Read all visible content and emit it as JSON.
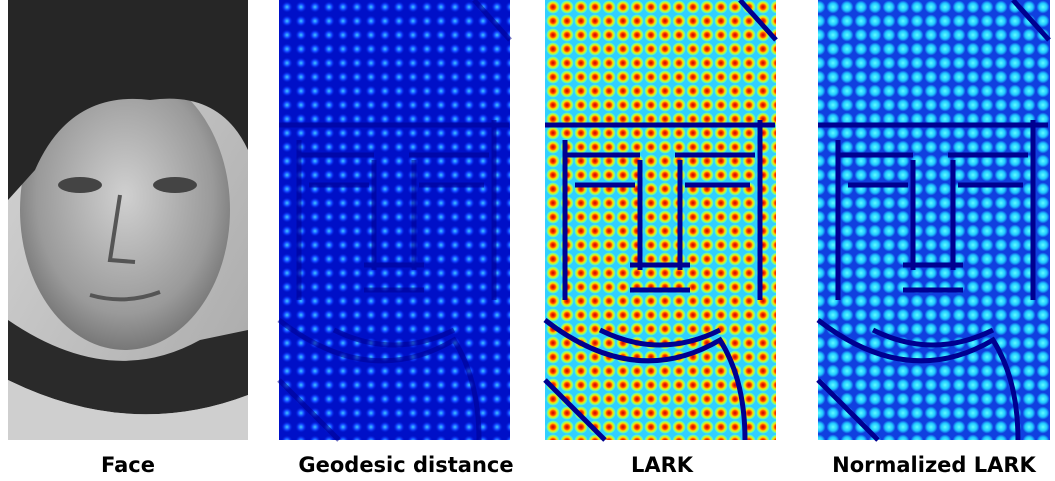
{
  "panels": [
    {
      "caption": "Face"
    },
    {
      "caption": "Geodesic distance"
    },
    {
      "caption": "LARK"
    },
    {
      "caption": "Normalized LARK"
    }
  ]
}
